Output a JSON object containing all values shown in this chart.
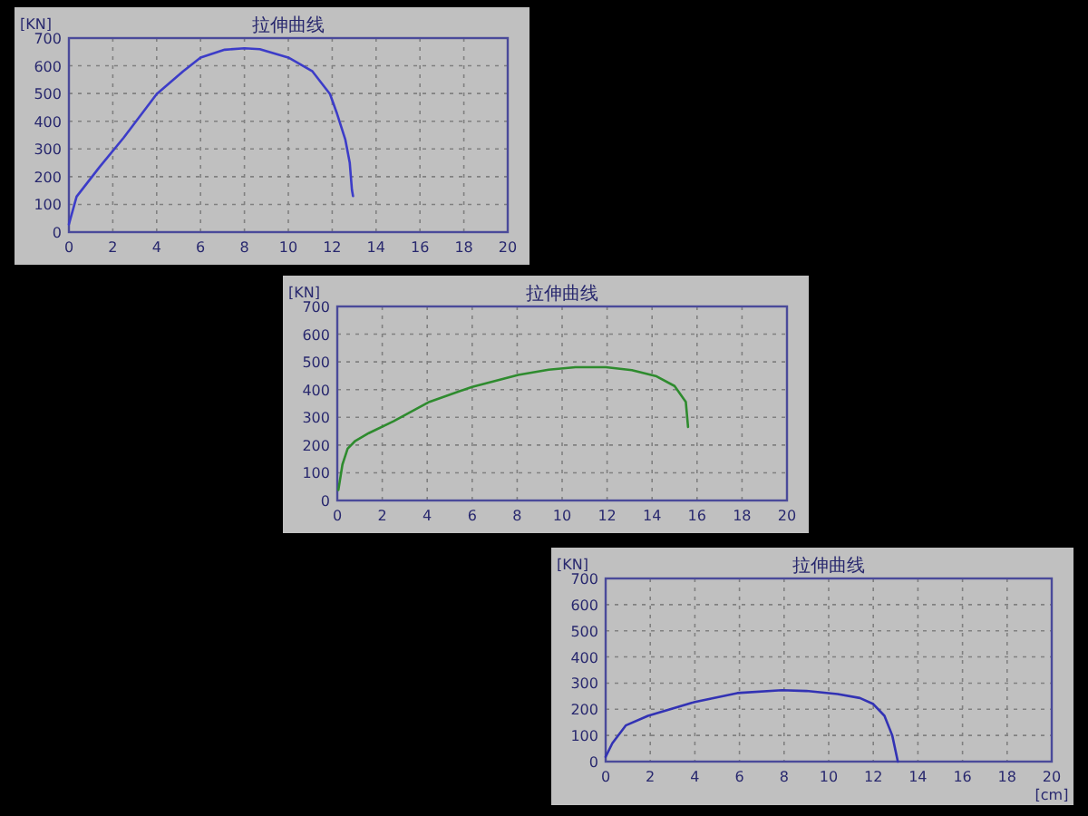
{
  "chart_data": [
    {
      "type": "line",
      "title": "拉伸曲线",
      "ylabel": "[KN]",
      "x": [
        0,
        0.35,
        1.4,
        2.5,
        4,
        5.2,
        6,
        7.1,
        8,
        8.7,
        10,
        11.1,
        11.9,
        12.2,
        12.6,
        12.8,
        12.9,
        12.95
      ],
      "series": [
        {
          "color": "#3c3cc8",
          "values": [
            28,
            128,
            235,
            341,
            498,
            580,
            630,
            658,
            663,
            660,
            630,
            580,
            498,
            432,
            333,
            250,
            152,
            130
          ]
        }
      ],
      "xlim": [
        0,
        20
      ],
      "xticks": [
        0,
        2,
        4,
        6,
        8,
        10,
        12,
        14,
        16,
        18,
        20
      ],
      "ylim": [
        0,
        700
      ],
      "yticks": [
        0,
        100,
        200,
        300,
        400,
        500,
        600,
        700
      ],
      "grid": true
    },
    {
      "type": "line",
      "title": "拉伸曲线",
      "ylabel": "[KN]",
      "x": [
        0.05,
        0.23,
        0.46,
        0.8,
        1.4,
        2.5,
        4.1,
        6,
        8.05,
        9.4,
        10.6,
        11.95,
        13.1,
        14.2,
        15,
        15.5,
        15.6
      ],
      "series": [
        {
          "color": "#2e8b2e",
          "values": [
            38,
            130,
            187,
            215,
            243,
            286,
            356,
            410,
            453,
            472,
            481,
            481,
            470,
            448,
            413,
            356,
            265
          ]
        }
      ],
      "xlim": [
        0,
        20
      ],
      "xticks": [
        0,
        2,
        4,
        6,
        8,
        10,
        12,
        14,
        16,
        18,
        20
      ],
      "ylim": [
        0,
        700
      ],
      "yticks": [
        0,
        100,
        200,
        300,
        400,
        500,
        600,
        700
      ],
      "grid": true
    },
    {
      "type": "line",
      "title": "拉伸曲线",
      "ylabel": "[KN]",
      "xlabel": "[cm]",
      "x": [
        0,
        0.3,
        0.9,
        1.9,
        4,
        5.9,
        7.9,
        9,
        10.4,
        11.4,
        12,
        12.5,
        12.85,
        13.1
      ],
      "series": [
        {
          "color": "#3232b4",
          "values": [
            18,
            70,
            138,
            175,
            228,
            262,
            273,
            270,
            258,
            243,
            220,
            175,
            100,
            0
          ]
        }
      ],
      "xlim": [
        0,
        20
      ],
      "xticks": [
        0,
        2,
        4,
        6,
        8,
        10,
        12,
        14,
        16,
        18,
        20
      ],
      "ylim": [
        0,
        700
      ],
      "yticks": [
        0,
        100,
        200,
        300,
        400,
        500,
        600,
        700
      ],
      "grid": true
    }
  ]
}
